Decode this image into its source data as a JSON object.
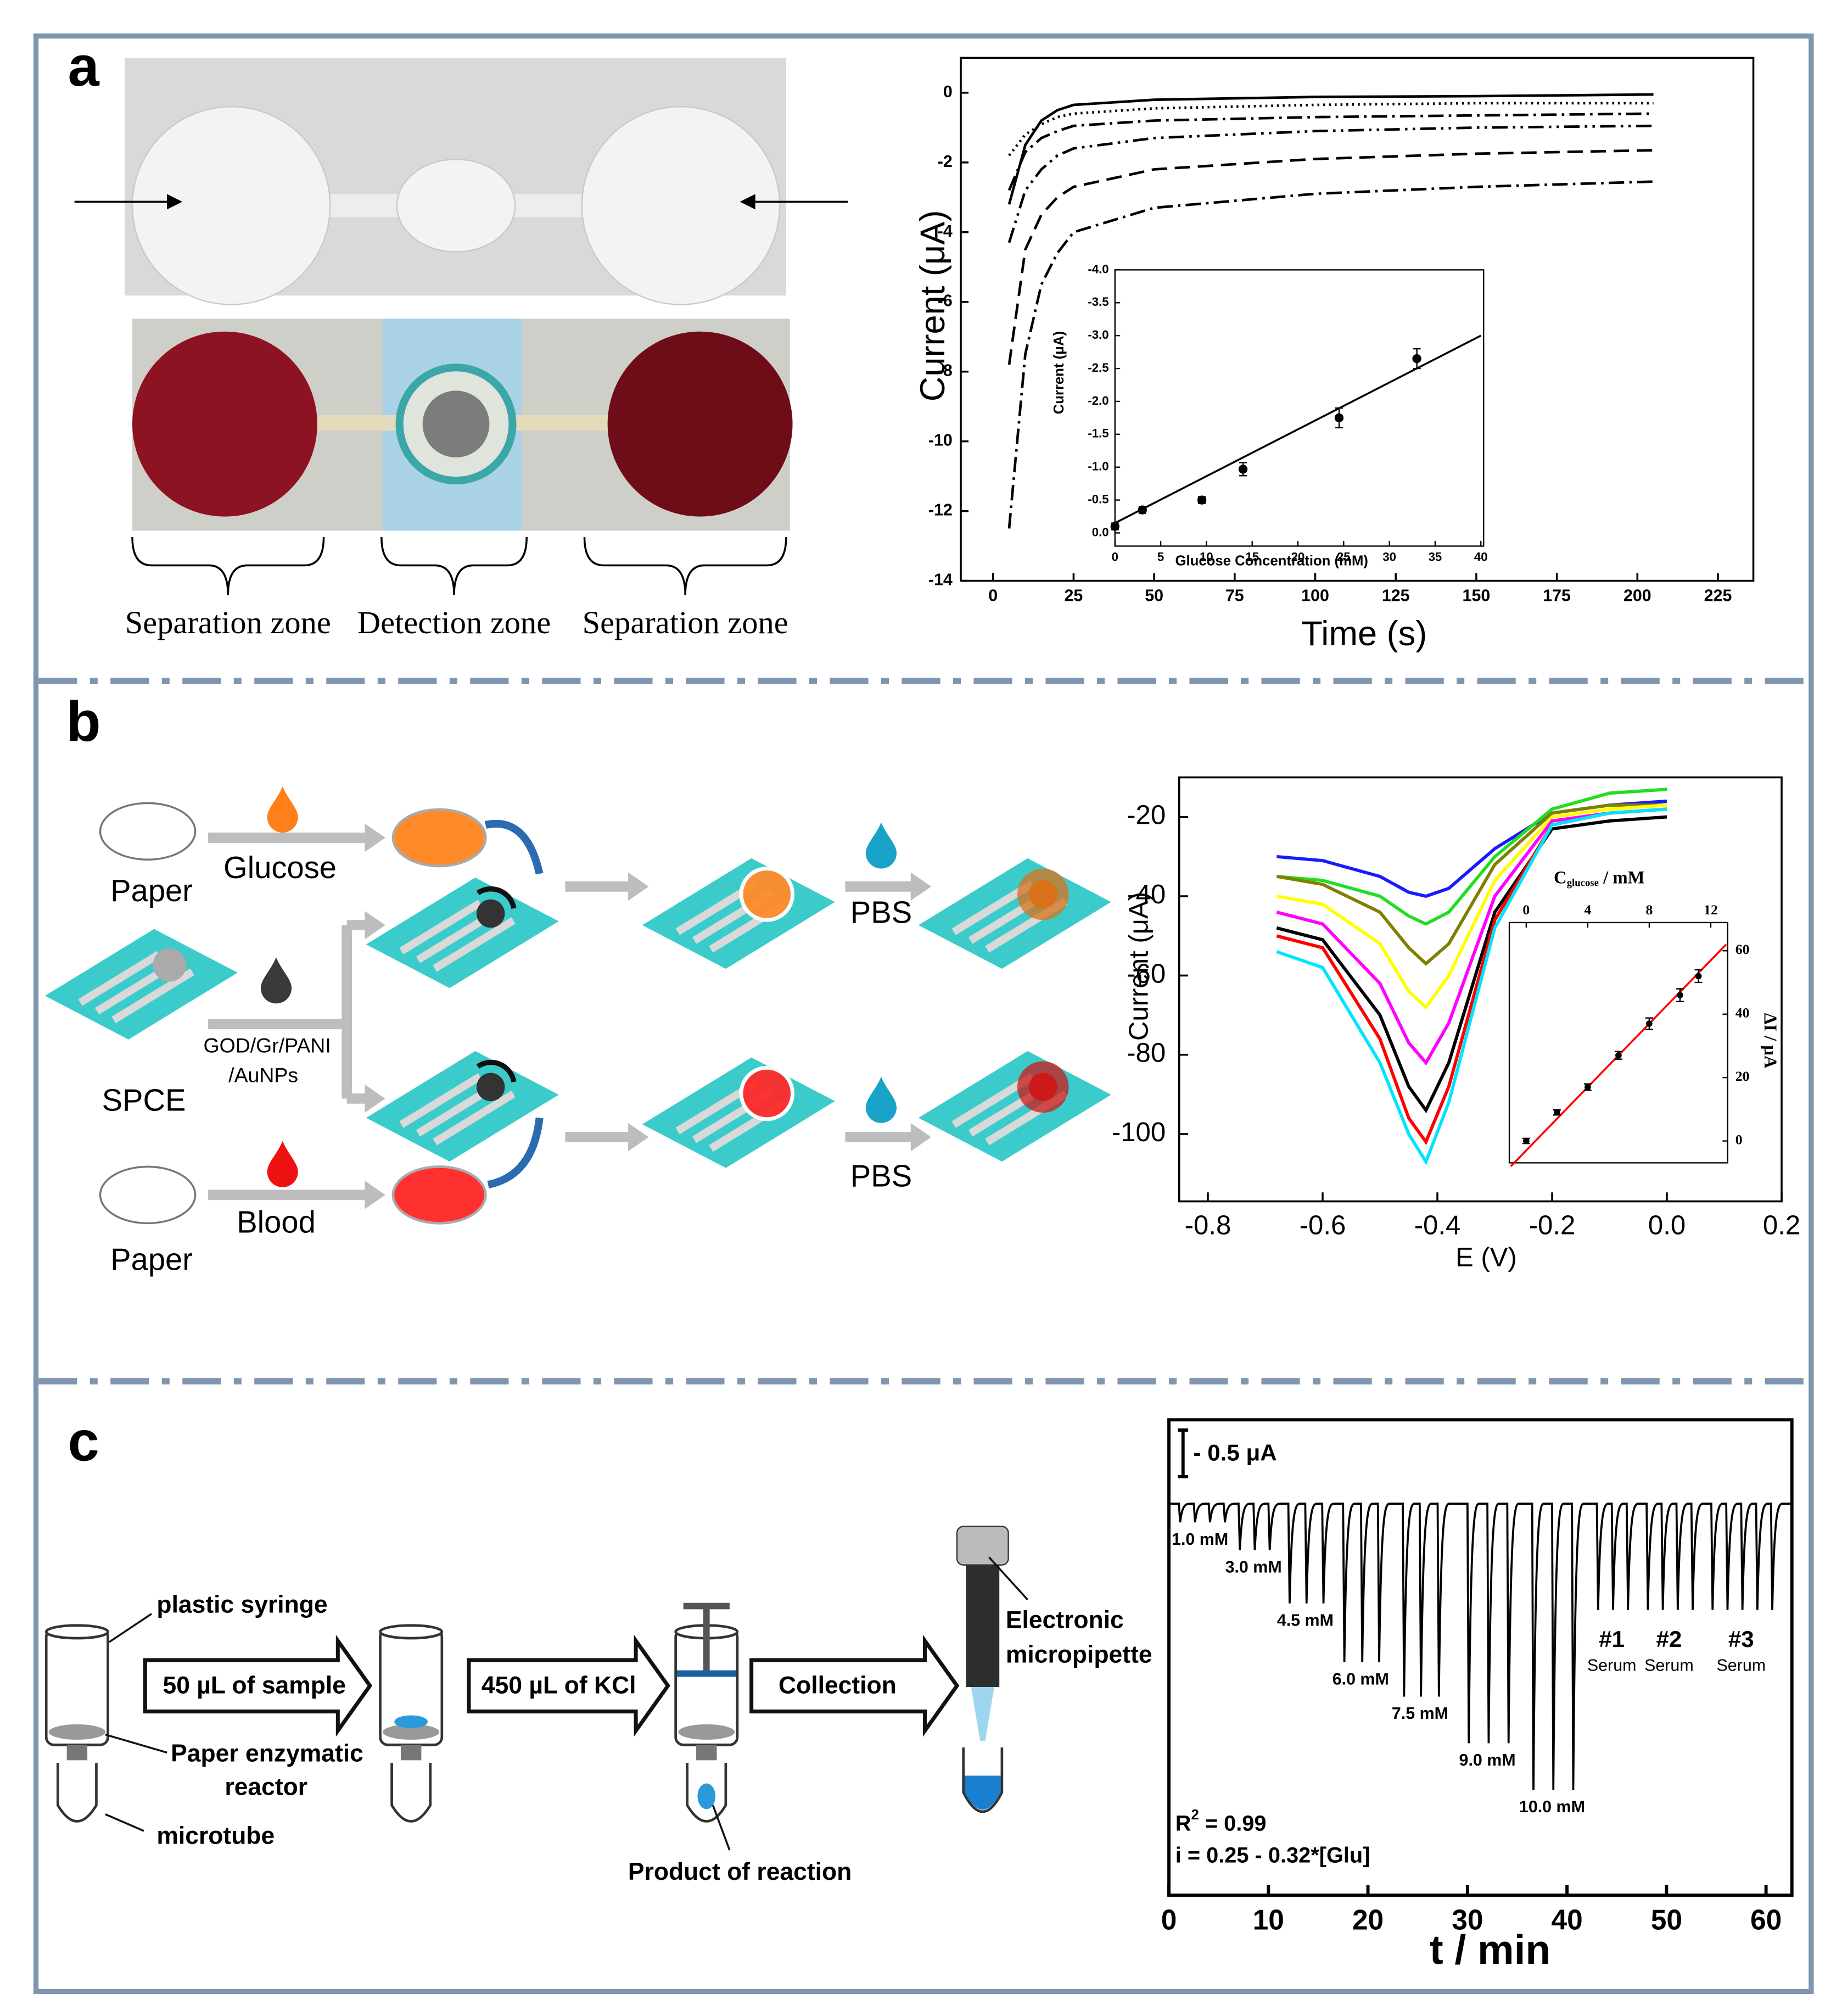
{
  "panel_labels": [
    "a",
    "b",
    "c"
  ],
  "photo_a": {
    "zones": [
      "Separation zone",
      "Detection zone",
      "Separation zone"
    ]
  },
  "diagram_b": {
    "paper_top": "Paper",
    "glucose": "Glucose",
    "spce": "SPCE",
    "modifier": [
      "GOD/Gr/PANI",
      "/AuNPs"
    ],
    "blood": "Blood",
    "paper_bottom": "Paper",
    "pbs_top": "PBS",
    "pbs_bottom": "PBS"
  },
  "diagram_c": {
    "syringe": "plastic syringe",
    "step1": "50 µL of sample",
    "step2": "450 µL of KCl",
    "step3": "Collection",
    "reactor": [
      "Paper enzymatic",
      "reactor"
    ],
    "microtube": "microtube",
    "product": "Product of reaction",
    "pipette": [
      "Electronic",
      "micropipette"
    ]
  },
  "chart_data": [
    {
      "type": "line",
      "x_label": "Time (s)",
      "y_label": "Current (μA)",
      "xlim": [
        -10,
        236
      ],
      "ylim": [
        -14,
        1
      ],
      "xticks": [
        0,
        25,
        50,
        75,
        100,
        125,
        150,
        175,
        200,
        225
      ],
      "yticks": [
        0,
        -2,
        -4,
        -6,
        -8,
        -10,
        -12,
        -14
      ],
      "x": [
        5,
        10,
        15,
        20,
        25,
        50,
        100,
        150,
        205
      ],
      "series": [
        {
          "style": "solid",
          "color": "#000000",
          "values": [
            -3.2,
            -1.5,
            -0.8,
            -0.5,
            -0.35,
            -0.2,
            -0.12,
            -0.1,
            -0.05
          ]
        },
        {
          "style": "dotted",
          "color": "#000000",
          "values": [
            -1.8,
            -1.2,
            -0.9,
            -0.7,
            -0.6,
            -0.45,
            -0.35,
            -0.3,
            -0.3
          ]
        },
        {
          "style": "dashdot",
          "color": "#000000",
          "values": [
            -2.8,
            -1.7,
            -1.3,
            -1.1,
            -0.95,
            -0.8,
            -0.7,
            -0.65,
            -0.6
          ]
        },
        {
          "style": "dashdotdot",
          "color": "#000000",
          "values": [
            -4.3,
            -2.8,
            -2.2,
            -1.8,
            -1.6,
            -1.3,
            -1.1,
            -1.0,
            -0.95
          ]
        },
        {
          "style": "dashed",
          "color": "#000000",
          "values": [
            -7.8,
            -4.5,
            -3.5,
            -3.0,
            -2.7,
            -2.2,
            -1.9,
            -1.75,
            -1.65
          ]
        },
        {
          "style": "dashdot",
          "color": "#000000",
          "values": [
            -12.5,
            -7.5,
            -5.5,
            -4.6,
            -4.0,
            -3.3,
            -2.9,
            -2.7,
            -2.55
          ]
        }
      ]
    },
    {
      "type": "scatter",
      "x_label": "Glucose Concentration (mM)",
      "y_label": "Current (μA)",
      "xlim": [
        0,
        40.3
      ],
      "ylim": [
        0.2,
        -4
      ],
      "xticks": [
        0,
        5,
        10,
        15,
        20,
        25,
        30,
        35,
        40
      ],
      "yticks": [
        {
          "value": -4,
          "label": "-4.0"
        },
        -3.5,
        {
          "value": -3,
          "label": "-3.0"
        },
        -2.5,
        {
          "value": -2,
          "label": "-2.0"
        },
        -1.5,
        {
          "value": -1,
          "label": "-1.0"
        },
        -0.5,
        {
          "value": 0,
          "label": "0.0"
        }
      ],
      "x": [
        0,
        3,
        9.5,
        14,
        24.5,
        33
      ],
      "values": [
        -0.1,
        -0.35,
        -0.5,
        -0.97,
        -1.75,
        -2.65
      ],
      "errors": [
        0.05,
        0.05,
        0.05,
        0.1,
        0.15,
        0.15
      ],
      "color": "#000000",
      "fit": {
        "x": [
          0,
          40
        ],
        "values": [
          -0.15,
          -3.0
        ],
        "color": "#000000"
      }
    },
    {
      "type": "line",
      "x_label": "E (V)",
      "y_label": "Current (μA)",
      "xlim": [
        -0.85,
        0.2
      ],
      "ylim": [
        -117,
        -10
      ],
      "xticks": [
        -0.8,
        -0.6,
        -0.4,
        -0.2,
        {
          "value": 0,
          "label": "0.0"
        },
        0.2
      ],
      "yticks": [
        -100,
        -80,
        -60,
        -40,
        -20
      ],
      "x": [
        -0.68,
        -0.6,
        -0.5,
        -0.45,
        -0.42,
        -0.38,
        -0.3,
        -0.2,
        -0.1,
        0.0
      ],
      "series": [
        {
          "style": "solid",
          "color": "#1a1aff",
          "values": [
            -30,
            -31,
            -35,
            -39,
            -40,
            -38,
            -28,
            -19,
            -17,
            -16
          ]
        },
        {
          "style": "solid",
          "color": "#22dd22",
          "values": [
            -35,
            -36,
            -40,
            -45,
            -47,
            -44,
            -30,
            -18,
            -14,
            -13
          ]
        },
        {
          "style": "solid",
          "color": "#808000",
          "values": [
            -35,
            -37,
            -44,
            -53,
            -57,
            -52,
            -32,
            -19,
            -17,
            -17
          ]
        },
        {
          "style": "solid",
          "color": "#ffff00",
          "values": [
            -40,
            -42,
            -52,
            -64,
            -68,
            -60,
            -36,
            -20,
            -18,
            -17
          ]
        },
        {
          "style": "solid",
          "color": "#ff00ff",
          "values": [
            -44,
            -47,
            -62,
            -77,
            -82,
            -72,
            -40,
            -21,
            -19,
            -18
          ]
        },
        {
          "style": "solid",
          "color": "#000000",
          "values": [
            -48,
            -51,
            -70,
            -88,
            -94,
            -82,
            -44,
            -23,
            -21,
            -20
          ]
        },
        {
          "style": "solid",
          "color": "#ff0000",
          "values": [
            -50,
            -53,
            -76,
            -96,
            -102,
            -88,
            -46,
            -22,
            -19,
            -18
          ]
        },
        {
          "style": "solid",
          "color": "#00e5ff",
          "values": [
            -54,
            -58,
            -82,
            -100,
            -107,
            -92,
            -48,
            -22,
            -19,
            -18
          ]
        }
      ]
    },
    {
      "type": "scatter",
      "x_label": "C",
      "x_label_sub": "glucose",
      "x_label_rest": " / mM",
      "y_label": "ΔI / μA",
      "x_axis": "top",
      "y_axis": "right",
      "xlim": [
        -1.1,
        13.1
      ],
      "ylim": [
        -6.9,
        68.9
      ],
      "xticks": [
        0,
        4,
        8,
        12
      ],
      "yticks": [
        0,
        20,
        40,
        60
      ],
      "x": [
        0,
        2,
        4,
        6,
        8,
        10,
        11.2
      ],
      "values": [
        0,
        9,
        17,
        27,
        37,
        46,
        52
      ],
      "errors": [
        0.8,
        0.8,
        1,
        1.2,
        1.8,
        2,
        2
      ],
      "color": "#000000",
      "fit": {
        "x": [
          -1,
          13
        ],
        "values": [
          -8,
          62
        ],
        "color": "#ff0000"
      }
    },
    {
      "type": "trace",
      "x_label": "t / min",
      "xlim": [
        0,
        62.6
      ],
      "ylim": [
        -4.2,
        0.9
      ],
      "xticks": [
        0,
        10,
        20,
        30,
        40,
        50,
        60
      ],
      "color": "#000000",
      "scale_bar": {
        "value": 0.5,
        "label": "- 0.5 μA"
      },
      "groups": [
        {
          "label": "1.0 mM",
          "x": [
            1,
            2.5,
            4,
            5.5
          ],
          "values": [
            -0.2,
            -0.2,
            -0.2,
            -0.2
          ]
        },
        {
          "label": "3.0 mM",
          "x": [
            7,
            8.5,
            10
          ],
          "values": [
            -0.5,
            -0.5,
            -0.5
          ]
        },
        {
          "label": "4.5 mM",
          "x": [
            12,
            13.7,
            15.4
          ],
          "values": [
            -1.07,
            -1.07,
            -1.07
          ]
        },
        {
          "label": "6.0 mM",
          "x": [
            17.5,
            19.3,
            21
          ],
          "values": [
            -1.7,
            -1.7,
            -1.7
          ]
        },
        {
          "label": "7.5 mM",
          "x": [
            23.5,
            25.2,
            27
          ],
          "values": [
            -2.07,
            -2.07,
            -2.07
          ]
        },
        {
          "label": "9.0 mM",
          "x": [
            30,
            32,
            34
          ],
          "values": [
            -2.57,
            -2.57,
            -2.57
          ]
        },
        {
          "label": "10.0 mM",
          "x": [
            36.5,
            38.5,
            40.5
          ],
          "values": [
            -3.07,
            -3.07,
            -3.07
          ]
        },
        {
          "label": "#1",
          "sublabel": "Serum",
          "x": [
            43,
            44.5,
            46
          ],
          "values": [
            -1.14,
            -1.14,
            -1.14
          ]
        },
        {
          "label": "#2",
          "sublabel": "Serum",
          "x": [
            48,
            49.5,
            51,
            52.5
          ],
          "values": [
            -1.14,
            -1.14,
            -1.14,
            -1.14
          ]
        },
        {
          "label": "#3",
          "sublabel": "Serum",
          "x": [
            54.5,
            56,
            57.5,
            59,
            60.5
          ],
          "values": [
            -1.14,
            -1.14,
            -1.14,
            -1.14,
            -1.14
          ]
        }
      ],
      "r2": {
        "base": "R",
        "sup": "2",
        "rest": " = 0.99"
      },
      "equation": "i = 0.25 - 0.32*[Glu]"
    }
  ]
}
